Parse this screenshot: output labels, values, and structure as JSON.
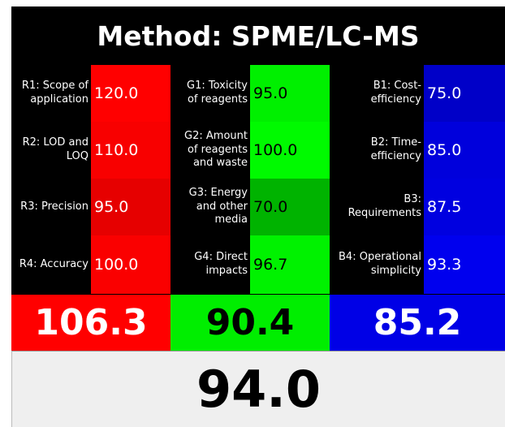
{
  "title": "Method: SPME/LC-MS",
  "groups": [
    {
      "color": "#ff0000",
      "text_color": "#ffffff",
      "total": "106.3",
      "items": [
        {
          "label": "R1: Scope of application",
          "value": "120.0",
          "color": "#ff0000"
        },
        {
          "label": "R2: LOD and LOQ",
          "value": "110.0",
          "color": "#f80000"
        },
        {
          "label": "R3: Precision",
          "value": "95.0",
          "color": "#e60000"
        },
        {
          "label": "R4: Accuracy",
          "value": "100.0",
          "color": "#fa0000"
        }
      ]
    },
    {
      "color": "#00ee00",
      "text_color": "#000000",
      "total": "90.4",
      "items": [
        {
          "label": "G1: Toxicity of reagents",
          "value": "95.0",
          "color": "#00f000"
        },
        {
          "label": "G2: Amount of reagents and waste",
          "value": "100.0",
          "color": "#00fa00"
        },
        {
          "label": "G3: Energy and other media",
          "value": "70.0",
          "color": "#00b300"
        },
        {
          "label": "G4: Direct impacts",
          "value": "96.7",
          "color": "#00f200"
        }
      ]
    },
    {
      "color": "#0000e6",
      "text_color": "#ffffff",
      "total": "85.2",
      "items": [
        {
          "label": "B1: Cost-efficiency",
          "value": "75.0",
          "color": "#0000c8"
        },
        {
          "label": "B2: Time-efficiency",
          "value": "85.0",
          "color": "#0000dc"
        },
        {
          "label": "B3: Requirements",
          "value": "87.5",
          "color": "#0000e0"
        },
        {
          "label": "B4: Operational simplicity",
          "value": "93.3",
          "color": "#0000ee"
        }
      ]
    }
  ],
  "overall": "94.0"
}
